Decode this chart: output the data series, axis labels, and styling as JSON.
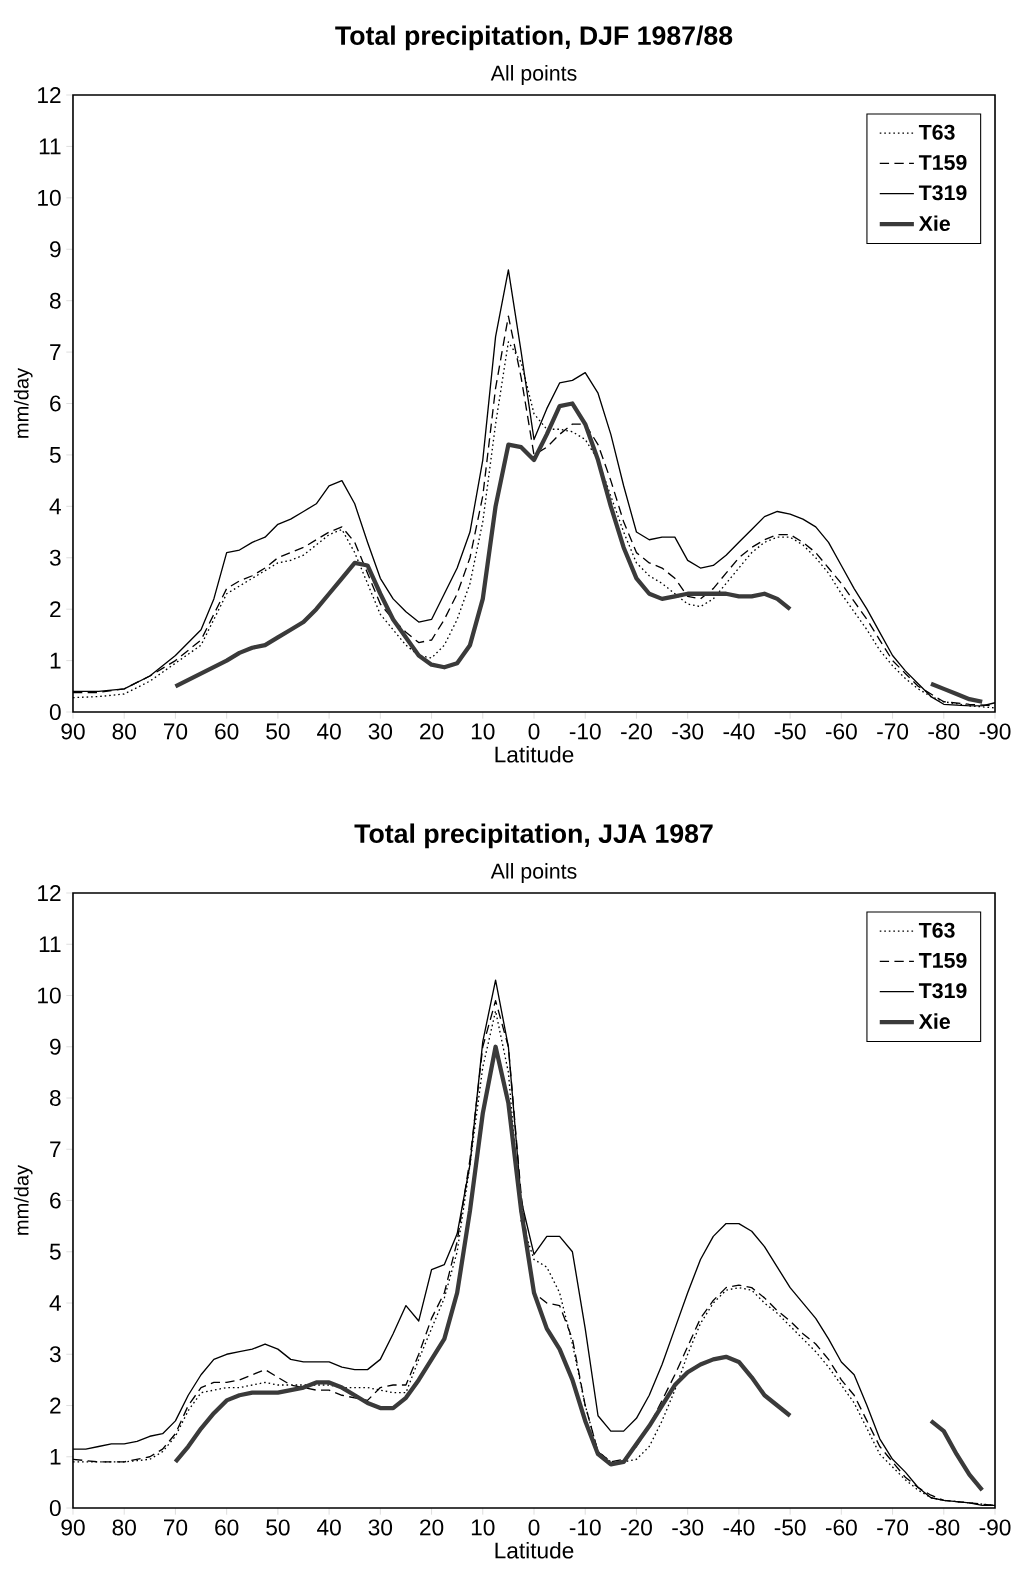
{
  "chart_data": [
    {
      "type": "line",
      "title": "**Total precipitation, DJF 1987/88**",
      "subtitle": "All points",
      "xlabel": "Latitude",
      "ylabel": "mm/day",
      "xlim": [
        90,
        -90
      ],
      "xticks": [
        90,
        80,
        70,
        60,
        50,
        40,
        30,
        20,
        10,
        0,
        -10,
        -20,
        -30,
        -40,
        -50,
        -60,
        -70,
        -80,
        -90
      ],
      "ylim": [
        0,
        12
      ],
      "yticks": [
        0,
        1,
        2,
        3,
        4,
        5,
        6,
        7,
        8,
        9,
        10,
        11,
        12
      ],
      "legend": "top right",
      "grid": false,
      "series": [
        {
          "name": "T63",
          "color": "#000000",
          "line_style": "dotted",
          "x": [
            90,
            85,
            80,
            75,
            70,
            65,
            62.5,
            60,
            57.5,
            55,
            52.5,
            50,
            47.5,
            45,
            42.5,
            40,
            37.5,
            35,
            32.5,
            30,
            27.5,
            25,
            22.5,
            20,
            17.5,
            15,
            12.5,
            10,
            7.5,
            5,
            2.5,
            0,
            -2.5,
            -5,
            -7.5,
            -10,
            -12.5,
            -15,
            -17.5,
            -20,
            -22.5,
            -25,
            -27.5,
            -30,
            -32.5,
            -35,
            -37.5,
            -40,
            -42.5,
            -45,
            -47.5,
            -50,
            -52.5,
            -55,
            -57.5,
            -60,
            -62.5,
            -65,
            -67.5,
            -70,
            -72.5,
            -75,
            -77.5,
            -80,
            -85,
            -90
          ],
          "values": [
            0.28,
            0.3,
            0.35,
            0.6,
            0.95,
            1.3,
            1.8,
            2.3,
            2.45,
            2.6,
            2.75,
            2.9,
            2.95,
            3.05,
            3.25,
            3.45,
            3.55,
            3.1,
            2.5,
            1.9,
            1.6,
            1.3,
            1.1,
            1.05,
            1.3,
            1.8,
            2.5,
            3.7,
            5.6,
            7.2,
            6.8,
            5.8,
            5.5,
            5.5,
            5.45,
            5.3,
            4.9,
            4.2,
            3.5,
            2.9,
            2.65,
            2.5,
            2.3,
            2.1,
            2.05,
            2.2,
            2.5,
            2.8,
            3.1,
            3.3,
            3.4,
            3.4,
            3.25,
            3.0,
            2.7,
            2.3,
            1.95,
            1.6,
            1.2,
            0.9,
            0.65,
            0.45,
            0.3,
            0.2,
            0.12,
            0.08
          ]
        },
        {
          "name": "T159",
          "color": "#000000",
          "line_style": "dashed",
          "x": [
            90,
            85,
            80,
            75,
            70,
            65,
            62.5,
            60,
            57.5,
            55,
            52.5,
            50,
            47.5,
            45,
            42.5,
            40,
            37.5,
            35,
            32.5,
            30,
            27.5,
            25,
            22.5,
            20,
            17.5,
            15,
            12.5,
            10,
            7.5,
            5,
            2.5,
            0,
            -2.5,
            -5,
            -7.5,
            -10,
            -12.5,
            -15,
            -17.5,
            -20,
            -22.5,
            -25,
            -27.5,
            -30,
            -32.5,
            -35,
            -37.5,
            -40,
            -42.5,
            -45,
            -47.5,
            -50,
            -52.5,
            -55,
            -57.5,
            -60,
            -62.5,
            -65,
            -67.5,
            -70,
            -72.5,
            -75,
            -77.5,
            -80,
            -85,
            -90
          ],
          "values": [
            0.38,
            0.38,
            0.45,
            0.7,
            1.0,
            1.4,
            1.9,
            2.4,
            2.55,
            2.65,
            2.8,
            3.0,
            3.1,
            3.2,
            3.35,
            3.5,
            3.6,
            3.3,
            2.7,
            2.1,
            1.8,
            1.55,
            1.35,
            1.4,
            1.8,
            2.3,
            3.0,
            4.2,
            6.3,
            7.7,
            6.5,
            5.0,
            5.15,
            5.4,
            5.6,
            5.6,
            5.2,
            4.5,
            3.7,
            3.1,
            2.9,
            2.8,
            2.6,
            2.25,
            2.2,
            2.4,
            2.7,
            3.0,
            3.2,
            3.35,
            3.45,
            3.45,
            3.3,
            3.1,
            2.8,
            2.5,
            2.15,
            1.8,
            1.4,
            1.0,
            0.75,
            0.5,
            0.35,
            0.2,
            0.15,
            0.12
          ]
        },
        {
          "name": "T319",
          "color": "#000000",
          "line_style": "solid",
          "x": [
            90,
            85,
            80,
            75,
            70,
            65,
            62.5,
            60,
            57.5,
            55,
            52.5,
            50,
            47.5,
            45,
            42.5,
            40,
            37.5,
            35,
            32.5,
            30,
            27.5,
            25,
            22.5,
            20,
            17.5,
            15,
            12.5,
            10,
            7.5,
            5,
            2.5,
            0,
            -2.5,
            -5,
            -7.5,
            -10,
            -12.5,
            -15,
            -17.5,
            -20,
            -22.5,
            -25,
            -27.5,
            -30,
            -32.5,
            -35,
            -37.5,
            -40,
            -42.5,
            -45,
            -47.5,
            -50,
            -52.5,
            -55,
            -57.5,
            -60,
            -62.5,
            -65,
            -67.5,
            -70,
            -72.5,
            -75,
            -77.5,
            -80,
            -85,
            -87.5,
            -90
          ],
          "values": [
            0.4,
            0.4,
            0.45,
            0.7,
            1.1,
            1.6,
            2.2,
            3.1,
            3.15,
            3.3,
            3.4,
            3.65,
            3.75,
            3.9,
            4.05,
            4.4,
            4.5,
            4.05,
            3.3,
            2.6,
            2.2,
            1.95,
            1.75,
            1.8,
            2.3,
            2.8,
            3.5,
            4.9,
            7.3,
            8.6,
            7.0,
            5.3,
            5.9,
            6.4,
            6.45,
            6.6,
            6.2,
            5.4,
            4.4,
            3.5,
            3.35,
            3.4,
            3.4,
            2.95,
            2.8,
            2.85,
            3.05,
            3.3,
            3.55,
            3.8,
            3.9,
            3.85,
            3.75,
            3.6,
            3.3,
            2.85,
            2.4,
            2.0,
            1.55,
            1.1,
            0.8,
            0.55,
            0.3,
            0.15,
            0.12,
            0.12,
            0.18
          ]
        },
        {
          "name": "Xie",
          "color": "#3a3a3a",
          "line_style": "solid",
          "x": [
            70,
            65,
            60,
            57.5,
            55,
            52.5,
            50,
            47.5,
            45,
            42.5,
            40,
            37.5,
            35,
            32.5,
            30,
            27.5,
            25,
            22.5,
            20,
            17.5,
            15,
            12.5,
            10,
            7.5,
            5,
            2.5,
            0,
            -2.5,
            -5,
            -7.5,
            -10,
            -12.5,
            -15,
            -17.5,
            -20,
            -22.5,
            -25,
            -27.5,
            -30,
            -32.5,
            -35,
            -37.5,
            -40,
            -42.5,
            -45,
            -47.5,
            -50,
            -65,
            -77.5,
            -80,
            -82.5,
            -85,
            -87.5
          ],
          "values": [
            0.5,
            0.75,
            1.0,
            1.15,
            1.25,
            1.3,
            1.45,
            1.6,
            1.75,
            2.0,
            2.3,
            2.6,
            2.9,
            2.85,
            2.3,
            1.8,
            1.45,
            1.1,
            0.92,
            0.87,
            0.95,
            1.3,
            2.2,
            4.0,
            5.2,
            5.15,
            4.9,
            5.4,
            5.95,
            6.0,
            5.6,
            4.9,
            4.0,
            3.2,
            2.6,
            2.3,
            2.2,
            2.25,
            2.3,
            2.3,
            2.3,
            2.3,
            2.25,
            2.25,
            2.3,
            2.2,
            2.0,
            null,
            0.55,
            0.45,
            0.35,
            0.25,
            0.2
          ]
        }
      ]
    },
    {
      "type": "line",
      "title": "**Total precipitation, JJA 1987**",
      "subtitle": "All points",
      "xlabel": "Latitude",
      "ylabel": "mm/day",
      "xlim": [
        90,
        -90
      ],
      "xticks": [
        90,
        80,
        70,
        60,
        50,
        40,
        30,
        20,
        10,
        0,
        -10,
        -20,
        -30,
        -40,
        -50,
        -60,
        -70,
        -80,
        -90
      ],
      "ylim": [
        0,
        12
      ],
      "yticks": [
        0,
        1,
        2,
        3,
        4,
        5,
        6,
        7,
        8,
        9,
        10,
        11,
        12
      ],
      "legend": "top right",
      "grid": false,
      "series": [
        {
          "name": "T63",
          "color": "#000000",
          "line_style": "dotted",
          "x": [
            90,
            85,
            80,
            75,
            72.5,
            70,
            67.5,
            65,
            62.5,
            60,
            57.5,
            55,
            52.5,
            50,
            47.5,
            45,
            42.5,
            40,
            37.5,
            35,
            32.5,
            30,
            27.5,
            25,
            22.5,
            20,
            17.5,
            15,
            12.5,
            10,
            7.5,
            5,
            2.5,
            0,
            -2.5,
            -5,
            -7.5,
            -10,
            -12.5,
            -15,
            -17.5,
            -20,
            -22.5,
            -25,
            -27.5,
            -30,
            -32.5,
            -35,
            -37.5,
            -40,
            -42.5,
            -45,
            -47.5,
            -50,
            -52.5,
            -55,
            -57.5,
            -60,
            -62.5,
            -65,
            -67.5,
            -70,
            -72.5,
            -75,
            -77.5,
            -80,
            -85,
            -90
          ],
          "values": [
            0.9,
            0.9,
            0.9,
            0.95,
            1.1,
            1.4,
            1.9,
            2.25,
            2.3,
            2.35,
            2.35,
            2.4,
            2.45,
            2.4,
            2.4,
            2.4,
            2.4,
            2.4,
            2.35,
            2.35,
            2.35,
            2.3,
            2.25,
            2.25,
            2.9,
            3.5,
            4.1,
            5.0,
            6.7,
            8.6,
            9.7,
            8.5,
            5.6,
            4.85,
            4.7,
            4.2,
            3.2,
            2.0,
            1.1,
            0.9,
            0.9,
            0.95,
            1.2,
            1.7,
            2.3,
            3.0,
            3.6,
            4.0,
            4.25,
            4.3,
            4.25,
            4.0,
            3.8,
            3.55,
            3.3,
            3.05,
            2.75,
            2.4,
            2.05,
            1.55,
            1.05,
            0.8,
            0.55,
            0.35,
            0.2,
            0.15,
            0.1,
            0.05
          ]
        },
        {
          "name": "T159",
          "color": "#000000",
          "line_style": "dashed",
          "x": [
            90,
            85,
            80,
            75,
            72.5,
            70,
            67.5,
            65,
            62.5,
            60,
            57.5,
            55,
            52.5,
            50,
            47.5,
            45,
            42.5,
            40,
            37.5,
            35,
            32.5,
            30,
            27.5,
            25,
            22.5,
            20,
            17.5,
            15,
            12.5,
            10,
            7.5,
            5,
            2.5,
            0,
            -2.5,
            -5,
            -7.5,
            -10,
            -12.5,
            -15,
            -17.5,
            -20,
            -22.5,
            -25,
            -27.5,
            -30,
            -32.5,
            -35,
            -37.5,
            -40,
            -42.5,
            -45,
            -47.5,
            -50,
            -52.5,
            -55,
            -57.5,
            -60,
            -62.5,
            -65,
            -67.5,
            -70,
            -72.5,
            -75,
            -77.5,
            -80,
            -85,
            -90
          ],
          "values": [
            0.95,
            0.9,
            0.9,
            1.0,
            1.15,
            1.45,
            2.0,
            2.35,
            2.45,
            2.45,
            2.5,
            2.6,
            2.7,
            2.55,
            2.4,
            2.35,
            2.3,
            2.3,
            2.2,
            2.15,
            2.1,
            2.35,
            2.4,
            2.4,
            3.0,
            3.7,
            4.2,
            5.2,
            6.8,
            9.0,
            9.9,
            9.0,
            6.1,
            4.2,
            4.0,
            3.95,
            3.3,
            2.0,
            1.1,
            0.9,
            0.95,
            1.2,
            1.6,
            2.1,
            2.6,
            3.15,
            3.7,
            4.05,
            4.3,
            4.35,
            4.3,
            4.1,
            3.85,
            3.65,
            3.4,
            3.2,
            2.9,
            2.5,
            2.2,
            1.7,
            1.2,
            0.9,
            0.6,
            0.4,
            0.25,
            0.15,
            0.1,
            0.05
          ]
        },
        {
          "name": "T319",
          "color": "#000000",
          "line_style": "solid",
          "x": [
            90,
            87.5,
            85,
            82.5,
            80,
            77.5,
            75,
            72.5,
            70,
            67.5,
            65,
            62.5,
            60,
            57.5,
            55,
            52.5,
            50,
            47.5,
            45,
            42.5,
            40,
            37.5,
            35,
            32.5,
            30,
            27.5,
            25,
            22.5,
            20,
            17.5,
            15,
            12.5,
            10,
            7.5,
            5,
            2.5,
            0,
            -2.5,
            -5,
            -7.5,
            -10,
            -12.5,
            -15,
            -17.5,
            -20,
            -22.5,
            -25,
            -27.5,
            -30,
            -32.5,
            -35,
            -37.5,
            -40,
            -42.5,
            -45,
            -47.5,
            -50,
            -52.5,
            -55,
            -57.5,
            -60,
            -62.5,
            -65,
            -67.5,
            -70,
            -72.5,
            -75,
            -77.5,
            -80,
            -85,
            -87.5,
            -90
          ],
          "values": [
            1.15,
            1.15,
            1.2,
            1.25,
            1.25,
            1.3,
            1.4,
            1.45,
            1.7,
            2.2,
            2.6,
            2.9,
            3.0,
            3.05,
            3.1,
            3.2,
            3.1,
            2.9,
            2.85,
            2.85,
            2.85,
            2.75,
            2.7,
            2.7,
            2.9,
            3.4,
            3.95,
            3.65,
            4.65,
            4.75,
            5.35,
            6.7,
            9.1,
            10.3,
            9.0,
            6.0,
            4.95,
            5.3,
            5.3,
            5.0,
            3.5,
            1.8,
            1.5,
            1.5,
            1.75,
            2.2,
            2.8,
            3.5,
            4.2,
            4.85,
            5.3,
            5.55,
            5.55,
            5.4,
            5.1,
            4.7,
            4.3,
            4.0,
            3.7,
            3.3,
            2.85,
            2.6,
            2.0,
            1.35,
            0.95,
            0.7,
            0.4,
            0.2,
            0.15,
            0.1,
            0.05,
            0.05
          ]
        },
        {
          "name": "Xie",
          "color": "#3a3a3a",
          "line_style": "solid",
          "x": [
            70,
            67.5,
            65,
            62.5,
            60,
            57.5,
            55,
            52.5,
            50,
            47.5,
            45,
            42.5,
            40,
            37.5,
            35,
            32.5,
            30,
            27.5,
            25,
            22.5,
            20,
            17.5,
            15,
            12.5,
            10,
            7.5,
            5,
            2.5,
            0,
            -2.5,
            -5,
            -7.5,
            -10,
            -12.5,
            -15,
            -17.5,
            -20,
            -22.5,
            -25,
            -27.5,
            -30,
            -32.5,
            -35,
            -37.5,
            -40,
            -42.5,
            -45,
            -47.5,
            -50,
            -65,
            -77.5,
            -80,
            -82.5,
            -85,
            -87.5
          ],
          "values": [
            0.9,
            1.2,
            1.55,
            1.85,
            2.1,
            2.2,
            2.25,
            2.25,
            2.25,
            2.3,
            2.35,
            2.45,
            2.45,
            2.35,
            2.2,
            2.05,
            1.95,
            1.95,
            2.15,
            2.5,
            2.9,
            3.3,
            4.2,
            5.8,
            7.7,
            9.0,
            7.9,
            5.8,
            4.2,
            3.5,
            3.1,
            2.5,
            1.7,
            1.05,
            0.85,
            0.9,
            1.25,
            1.6,
            2.0,
            2.4,
            2.65,
            2.8,
            2.9,
            2.95,
            2.85,
            2.55,
            2.2,
            2.0,
            1.8,
            null,
            1.7,
            1.5,
            1.05,
            0.65,
            0.35
          ]
        }
      ]
    }
  ]
}
